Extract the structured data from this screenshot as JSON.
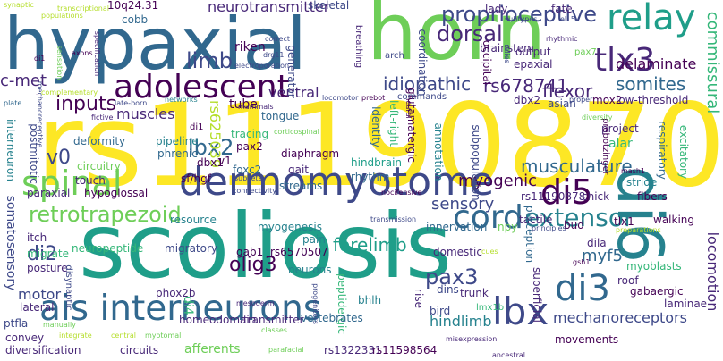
{
  "colors": {
    "background": "#ffffff",
    "palette": [
      "#440154",
      "#482878",
      "#3e4989",
      "#31688e",
      "#26828e",
      "#1f9e89",
      "#35b779",
      "#6ece58",
      "#b5de2b",
      "#fde725"
    ]
  },
  "words": [
    {
      "text": "rs11190870",
      "color": "#fde725",
      "rot": 0
    },
    {
      "text": "scoliosis",
      "color": "#1f9e89",
      "rot": 0
    },
    {
      "text": "hypaxial",
      "color": "#31688e",
      "rot": 0
    },
    {
      "text": "horn",
      "color": "#6ece58",
      "rot": 0
    },
    {
      "text": "di6",
      "color": "#26828e",
      "rot": 90
    },
    {
      "text": "dermomyotome",
      "color": "#3e4989",
      "rot": 0
    },
    {
      "text": "ais interneurons",
      "color": "#31688e",
      "rot": 0
    },
    {
      "text": "spinal",
      "color": "#6ece58",
      "rot": 0
    },
    {
      "text": "relay",
      "color": "#1f9e89",
      "rot": 0
    },
    {
      "text": "adolescent",
      "color": "#440154",
      "rot": 0
    },
    {
      "text": "cord",
      "color": "#31688e",
      "rot": 0
    },
    {
      "text": "lbx",
      "color": "#3e4989",
      "rot": 0
    },
    {
      "text": "tlx3",
      "color": "#482878",
      "rot": 0
    },
    {
      "text": "di3",
      "color": "#31688e",
      "rot": 0
    },
    {
      "text": "di5",
      "color": "#440154",
      "rot": 0
    },
    {
      "text": "extensor",
      "color": "#26828e",
      "rot": 0
    },
    {
      "text": "retrotrapezoid",
      "color": "#6ece58",
      "rot": 0
    },
    {
      "text": "proprioceptive",
      "color": "#3e4989",
      "rot": 0
    },
    {
      "text": "dorsal",
      "color": "#482878",
      "rot": 0
    },
    {
      "text": "limb",
      "color": "#3e4989",
      "rot": 0
    },
    {
      "text": "inputs",
      "color": "#440154",
      "rot": 0
    },
    {
      "text": "idiopathic",
      "color": "#3e4989",
      "rot": 0
    },
    {
      "text": "rs678741",
      "color": "#482878",
      "rot": 0
    },
    {
      "text": "flexor",
      "color": "#482878",
      "rot": 0
    },
    {
      "text": "somites",
      "color": "#31688e",
      "rot": 0
    },
    {
      "text": "delaminate",
      "color": "#440154",
      "rot": 0
    },
    {
      "text": "commissural",
      "color": "#35b779",
      "rot": 90
    },
    {
      "text": "locomotion",
      "color": "#482878",
      "rot": 90
    },
    {
      "text": "sensory",
      "color": "#3e4989",
      "rot": 0
    },
    {
      "text": "myogenic",
      "color": "#440154",
      "rot": 0
    },
    {
      "text": "pax3",
      "color": "#3e4989",
      "rot": 0
    },
    {
      "text": "di2",
      "color": "#3e4989",
      "rot": 0
    },
    {
      "text": "lbx2",
      "color": "#31688e",
      "rot": 0
    },
    {
      "text": "v0",
      "color": "#3e4989",
      "rot": 0
    },
    {
      "text": "forelimb",
      "color": "#1f9e89",
      "rot": 0
    },
    {
      "text": "musculature",
      "color": "#31688e",
      "rot": 0
    },
    {
      "text": "olig3",
      "color": "#440154",
      "rot": 0
    },
    {
      "text": "myf5",
      "color": "#31688e",
      "rot": 0
    },
    {
      "text": "hindlimb",
      "color": "#26828e",
      "rot": 0
    },
    {
      "text": "mechanoreceptors",
      "color": "#3e4989",
      "rot": 0
    },
    {
      "text": "neurotransmitter",
      "color": "#482878",
      "rot": 0
    },
    {
      "text": "muscles",
      "color": "#482878",
      "rot": 0
    },
    {
      "text": "ventral",
      "color": "#482878",
      "rot": 0
    },
    {
      "text": "rs625039",
      "color": "#b5de2b",
      "rot": 90
    },
    {
      "text": "motor",
      "color": "#3e4989",
      "rot": 0
    },
    {
      "text": "di4",
      "color": "#35b779",
      "rot": 90
    },
    {
      "text": "inputs",
      "color": "#440154",
      "rot": 0
    },
    {
      "text": "c-met",
      "color": "#482878",
      "rot": 0
    },
    {
      "text": "somatosensory",
      "color": "#3e4989",
      "rot": 90
    },
    {
      "text": "postmitotic",
      "color": "#3e4989",
      "rot": 90
    },
    {
      "text": "interneuron",
      "color": "#26828e",
      "rot": 90
    },
    {
      "text": "skeletal",
      "color": "#3e4989",
      "rot": 0
    },
    {
      "text": "tube",
      "color": "#440154",
      "rot": 0
    },
    {
      "text": "cobb",
      "color": "#31688e",
      "rot": 0
    },
    {
      "text": "10q24.31",
      "color": "#440154",
      "rot": 0
    },
    {
      "text": "riken",
      "color": "#440154",
      "rot": 0
    },
    {
      "text": "generator",
      "color": "#3e4989",
      "rot": 90
    },
    {
      "text": "coordination",
      "color": "#3e4989",
      "rot": 90
    },
    {
      "text": "brainstem",
      "color": "#482878",
      "rot": 0
    },
    {
      "text": "lady",
      "color": "#482878",
      "rot": 0
    },
    {
      "text": "fate",
      "color": "#482878",
      "rot": 0
    },
    {
      "text": "asian",
      "color": "#3e4989",
      "rot": 0
    },
    {
      "text": "mox2",
      "color": "#440154",
      "rot": 0
    },
    {
      "text": "low-threshold",
      "color": "#482878",
      "rot": 0
    },
    {
      "text": "output",
      "color": "#482878",
      "rot": 0
    },
    {
      "text": "epaxial",
      "color": "#482878",
      "rot": 0
    },
    {
      "text": "occipital",
      "color": "#440154",
      "rot": 90
    },
    {
      "text": "dbx2",
      "color": "#482878",
      "rot": 0
    },
    {
      "text": "project",
      "color": "#482878",
      "rot": 0
    },
    {
      "text": "prebotzinger",
      "color": "#440154",
      "rot": 90
    },
    {
      "text": "respiratory",
      "color": "#31688e",
      "rot": 90
    },
    {
      "text": "excitatory",
      "color": "#35b779",
      "rot": 90
    },
    {
      "text": "alar",
      "color": "#35b779",
      "rot": 0
    },
    {
      "text": "dila",
      "color": "#482878",
      "rot": 0
    },
    {
      "text": "pax2",
      "color": "#440154",
      "rot": 0
    },
    {
      "text": "tracing",
      "color": "#35b779",
      "rot": 0
    },
    {
      "text": "tongue",
      "color": "#31688e",
      "rot": 0
    },
    {
      "text": "deformity",
      "color": "#31688e",
      "rot": 0
    },
    {
      "text": "pipeline",
      "color": "#26828e",
      "rot": 0
    },
    {
      "text": "phrenic",
      "color": "#31688e",
      "rot": 0
    },
    {
      "text": "dbx1",
      "color": "#440154",
      "rot": 0
    },
    {
      "text": "sf/hgf",
      "color": "#440154",
      "rot": 0
    },
    {
      "text": "v1",
      "color": "#440154",
      "rot": 0
    },
    {
      "text": "diaphragm",
      "color": "#440154",
      "rot": 0
    },
    {
      "text": "gait",
      "color": "#482878",
      "rot": 0
    },
    {
      "text": "foxc2",
      "color": "#31688e",
      "rot": 0
    },
    {
      "text": "streams",
      "color": "#31688e",
      "rot": 0
    },
    {
      "text": "hindbrain",
      "color": "#1f9e89",
      "rot": 0
    },
    {
      "text": "rhythm",
      "color": "#31688e",
      "rot": 0
    },
    {
      "text": "identity",
      "color": "#31688e",
      "rot": 90
    },
    {
      "text": "left-right",
      "color": "#35b779",
      "rot": 90
    },
    {
      "text": "glutamatergic",
      "color": "#440154",
      "rot": 90
    },
    {
      "text": "annotation",
      "color": "#26828e",
      "rot": 90
    },
    {
      "text": "subpopulation",
      "color": "#3e4989",
      "rot": 90
    },
    {
      "text": "rs11190878",
      "color": "#482878",
      "rot": 0
    },
    {
      "text": "chick",
      "color": "#482878",
      "rot": 0
    },
    {
      "text": "stride",
      "color": "#26828e",
      "rot": 0
    },
    {
      "text": "fibers",
      "color": "#440154",
      "rot": 0
    },
    {
      "text": "circuitry",
      "color": "#6ece58",
      "rot": 0
    },
    {
      "text": "touch",
      "color": "#482878",
      "rot": 0
    },
    {
      "text": "paraxial",
      "color": "#482878",
      "rot": 0
    },
    {
      "text": "hypoglossal",
      "color": "#440154",
      "rot": 0
    },
    {
      "text": "resource",
      "color": "#26828e",
      "rot": 0
    },
    {
      "text": "myogenesis",
      "color": "#26828e",
      "rot": 0
    },
    {
      "text": "innervation",
      "color": "#31688e",
      "rot": 0
    },
    {
      "text": "npy",
      "color": "#6ece58",
      "rot": 0
    },
    {
      "text": "tactile",
      "color": "#482878",
      "rot": 0
    },
    {
      "text": "bud",
      "color": "#440154",
      "rot": 0
    },
    {
      "text": "tlx1",
      "color": "#440154",
      "rot": 0
    },
    {
      "text": "walking",
      "color": "#440154",
      "rot": 0
    },
    {
      "text": "itch",
      "color": "#482878",
      "rot": 0
    },
    {
      "text": "migrate",
      "color": "#35b779",
      "rot": 0
    },
    {
      "text": "posture",
      "color": "#482878",
      "rot": 0
    },
    {
      "text": "neuropeptide",
      "color": "#35b779",
      "rot": 0
    },
    {
      "text": "migratory",
      "color": "#3e4989",
      "rot": 0
    },
    {
      "text": "gab1",
      "color": "#440154",
      "rot": 0
    },
    {
      "text": "pain",
      "color": "#26828e",
      "rot": 0
    },
    {
      "text": "rs6570507",
      "color": "#440154",
      "rot": 0
    },
    {
      "text": "neurons",
      "color": "#26828e",
      "rot": 0
    },
    {
      "text": "domestic",
      "color": "#482878",
      "rot": 0
    },
    {
      "text": "dins",
      "color": "#3e4989",
      "rot": 0
    },
    {
      "text": "trunk",
      "color": "#482878",
      "rot": 0
    },
    {
      "text": "perception",
      "color": "#31688e",
      "rot": 90
    },
    {
      "text": "myoblasts",
      "color": "#35b779",
      "rot": 0
    },
    {
      "text": "roof",
      "color": "#482878",
      "rot": 0
    },
    {
      "text": "gabaergic",
      "color": "#440154",
      "rot": 0
    },
    {
      "text": "laminae",
      "color": "#482878",
      "rot": 0
    },
    {
      "text": "lateral",
      "color": "#482878",
      "rot": 0
    },
    {
      "text": "disynaptic",
      "color": "#3e4989",
      "rot": 90
    },
    {
      "text": "phox2b",
      "color": "#482878",
      "rot": 0
    },
    {
      "text": "bhlh",
      "color": "#26828e",
      "rot": 0
    },
    {
      "text": "peptidergic",
      "color": "#35b779",
      "rot": 90
    },
    {
      "text": "rise",
      "color": "#482878",
      "rot": 90
    },
    {
      "text": "bird",
      "color": "#3e4989",
      "rot": 0
    },
    {
      "text": "superficial",
      "color": "#482878",
      "rot": 90
    },
    {
      "text": "ptfla",
      "color": "#3e4989",
      "rot": 0
    },
    {
      "text": "convey",
      "color": "#482878",
      "rot": 0
    },
    {
      "text": "homeodomain",
      "color": "#482878",
      "rot": 0
    },
    {
      "text": "transmitter",
      "color": "#482878",
      "rot": 0
    },
    {
      "text": "vertebrates",
      "color": "#31688e",
      "rot": 0
    },
    {
      "text": "movements",
      "color": "#440154",
      "rot": 0
    },
    {
      "text": "diversification",
      "color": "#482878",
      "rot": 0
    },
    {
      "text": "circuits",
      "color": "#482878",
      "rot": 0
    },
    {
      "text": "afferents",
      "color": "#6ece58",
      "rot": 0
    },
    {
      "text": "rs1322331",
      "color": "#482878",
      "rot": 0
    },
    {
      "text": "rs11598564",
      "color": "#440154",
      "rot": 0
    },
    {
      "text": "breathing",
      "color": "#482878",
      "rot": 90
    },
    {
      "text": "arch",
      "color": "#3e4989",
      "rot": 0
    },
    {
      "text": "synaptic",
      "color": "#b5de2b",
      "rot": 0
    },
    {
      "text": "populations",
      "color": "#b5de2b",
      "rot": 0
    },
    {
      "text": "transcriptional",
      "color": "#b5de2b",
      "rot": 0
    },
    {
      "text": "subtypes",
      "color": "#3e4989",
      "rot": 0
    },
    {
      "text": "ell.5",
      "color": "#3e4989",
      "rot": 0
    },
    {
      "text": "correct",
      "color": "#3e4989",
      "rot": 0
    },
    {
      "text": "drg11",
      "color": "#3e4989",
      "rot": 0
    },
    {
      "text": "electroporation",
      "color": "#3e4989",
      "rot": 0
    },
    {
      "text": "axons",
      "color": "#440154",
      "rot": 0
    },
    {
      "text": "di1",
      "color": "#440154",
      "rot": 0
    },
    {
      "text": "complementary",
      "color": "#b5de2b",
      "rot": 0
    },
    {
      "text": "specification",
      "color": "#482878",
      "rot": 90
    },
    {
      "text": "sensation",
      "color": "#6ece58",
      "rot": 90
    },
    {
      "text": "plate",
      "color": "#31688e",
      "rot": 0
    },
    {
      "text": "mechanoreceptive",
      "color": "#3e4989",
      "rot": 90
    },
    {
      "text": "fictive",
      "color": "#482878",
      "rot": 0
    },
    {
      "text": "late-born",
      "color": "#3e4989",
      "rot": 0
    },
    {
      "text": "networks",
      "color": "#26828e",
      "rot": 0
    },
    {
      "text": "mammals",
      "color": "#482878",
      "rot": 0
    },
    {
      "text": "locomotor",
      "color": "#3e4989",
      "rot": 0
    },
    {
      "text": "prebot",
      "color": "#440154",
      "rot": 0
    },
    {
      "text": "commands",
      "color": "#3e4989",
      "rot": 0
    },
    {
      "text": "relies",
      "color": "#3e4989",
      "rot": 90
    },
    {
      "text": "rhythmic",
      "color": "#482878",
      "rot": 0
    },
    {
      "text": "pax7",
      "color": "#6ece58",
      "rot": 0
    },
    {
      "text": "proper",
      "color": "#3e4989",
      "rot": 0
    },
    {
      "text": "diversity",
      "color": "#6ece58",
      "rot": 0
    },
    {
      "text": "di1",
      "color": "#440154",
      "rot": 0
    },
    {
      "text": "corticospinal",
      "color": "#6ece58",
      "rot": 0
    },
    {
      "text": "subsets",
      "color": "#3e4989",
      "rot": 0
    },
    {
      "text": "connectivity",
      "color": "#3e4989",
      "rot": 0
    },
    {
      "text": "nocifensive",
      "color": "#440154",
      "rot": 0
    },
    {
      "text": "neural",
      "color": "#440154",
      "rot": 90
    },
    {
      "text": "transmission",
      "color": "#3e4989",
      "rot": 0
    },
    {
      "text": "principles",
      "color": "#3e4989",
      "rot": 0
    },
    {
      "text": "cues",
      "color": "#b5de2b",
      "rot": 0
    },
    {
      "text": "mash1",
      "color": "#440154",
      "rot": 0
    },
    {
      "text": "preparations",
      "color": "#b5de2b",
      "rot": 0
    },
    {
      "text": "gsh1",
      "color": "#440154",
      "rot": 0
    },
    {
      "text": "lmx1b",
      "color": "#35b779",
      "rot": 0
    },
    {
      "text": "mesoderm",
      "color": "#482878",
      "rot": 0
    },
    {
      "text": "progenitors",
      "color": "#3e4989",
      "rot": 90
    },
    {
      "text": "misexpression",
      "color": "#482878",
      "rot": 0
    },
    {
      "text": "ancestral",
      "color": "#482878",
      "rot": 0
    },
    {
      "text": "myotomal",
      "color": "#6ece58",
      "rot": 0
    },
    {
      "text": "parafacial",
      "color": "#6ece58",
      "rot": 0
    },
    {
      "text": "classes",
      "color": "#6ece58",
      "rot": 0
    },
    {
      "text": "integrate",
      "color": "#b5de2b",
      "rot": 0
    },
    {
      "text": "central",
      "color": "#b5de2b",
      "rot": 0
    },
    {
      "text": "manually",
      "color": "#6ece58",
      "rot": 0
    }
  ]
}
